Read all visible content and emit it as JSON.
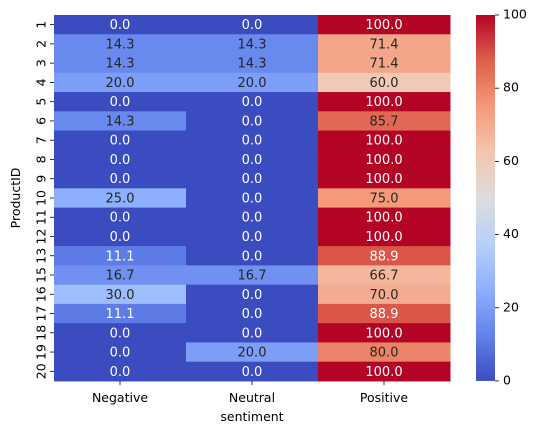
{
  "chart_data": {
    "type": "heatmap",
    "xlabel": "sentiment",
    "ylabel": "ProductID",
    "columns": [
      "Negative",
      "Neutral",
      "Positive"
    ],
    "rows": [
      "1",
      "2",
      "3",
      "4",
      "5",
      "6",
      "7",
      "8",
      "9",
      "10",
      "11",
      "12",
      "13",
      "15",
      "16",
      "17",
      "18",
      "19",
      "20"
    ],
    "values": [
      [
        0.0,
        0.0,
        100.0
      ],
      [
        14.3,
        14.3,
        71.4
      ],
      [
        14.3,
        14.3,
        71.4
      ],
      [
        20.0,
        20.0,
        60.0
      ],
      [
        0.0,
        0.0,
        100.0
      ],
      [
        14.3,
        0.0,
        85.7
      ],
      [
        0.0,
        0.0,
        100.0
      ],
      [
        0.0,
        0.0,
        100.0
      ],
      [
        0.0,
        0.0,
        100.0
      ],
      [
        25.0,
        0.0,
        75.0
      ],
      [
        0.0,
        0.0,
        100.0
      ],
      [
        0.0,
        0.0,
        100.0
      ],
      [
        11.1,
        0.0,
        88.9
      ],
      [
        16.7,
        16.7,
        66.7
      ],
      [
        30.0,
        0.0,
        70.0
      ],
      [
        11.1,
        0.0,
        88.9
      ],
      [
        0.0,
        0.0,
        100.0
      ],
      [
        0.0,
        20.0,
        80.0
      ],
      [
        0.0,
        0.0,
        100.0
      ]
    ],
    "value_range": [
      0,
      100
    ],
    "colormap": "coolwarm",
    "annotations": true,
    "colorbar_ticks": [
      "0",
      "20",
      "40",
      "60",
      "80",
      "100"
    ],
    "colorbar_tick_values": [
      0,
      20,
      40,
      60,
      80,
      100
    ],
    "colors": {
      "text_light": "#ffffff",
      "text_dark": "#262626"
    }
  }
}
